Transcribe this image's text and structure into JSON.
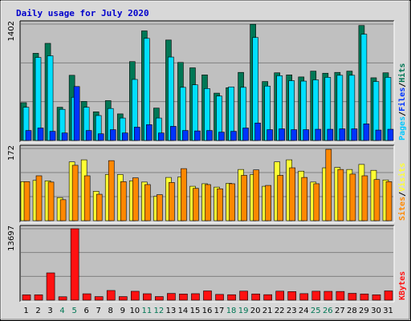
{
  "chart_data": {
    "type": "bar",
    "title": "Daily usage for July 2020",
    "days": [
      "1",
      "2",
      "3",
      "4",
      "5",
      "6",
      "7",
      "8",
      "9",
      "10",
      "11",
      "12",
      "13",
      "14",
      "15",
      "16",
      "17",
      "18",
      "19",
      "20",
      "21",
      "22",
      "23",
      "24",
      "25",
      "26",
      "27",
      "28",
      "29",
      "30",
      "31"
    ],
    "weekend_days": [
      4,
      5,
      11,
      12,
      18,
      19,
      25,
      26
    ],
    "colors": {
      "hits": "#007755",
      "files": "#00dfff",
      "pages": "#0033ff",
      "visits": "#ffff33",
      "sites": "#ff8800",
      "kbytes": "#ff1111",
      "weekday_text": "#000000",
      "weekend_text": "#007755",
      "title_text": "#0000cc",
      "plot_bg": "#c0c0c0",
      "frame_bg": "#d8d8d8"
    },
    "panels": [
      {
        "id": "hits",
        "ymax_label": "1402",
        "ymax": 1402,
        "grid_lines": 3,
        "legend": [
          {
            "text": "Pages",
            "color": "#00c8ff"
          },
          {
            "text": "/",
            "color": "#000000"
          },
          {
            "text": "Files",
            "color": "#0033ff"
          },
          {
            "text": "/",
            "color": "#000000"
          },
          {
            "text": "Hits",
            "color": "#007755"
          }
        ],
        "series": [
          {
            "name": "Hits",
            "color": "#007755",
            "values": [
              455,
              1050,
              1170,
              400,
              785,
              470,
              345,
              480,
              320,
              950,
              1320,
              390,
              1210,
              940,
              875,
              790,
              570,
              635,
              820,
              1400,
              710,
              815,
              790,
              765,
              835,
              810,
              820,
              835,
              1385,
              755,
              815
            ]
          },
          {
            "name": "Files",
            "color": "#00dfff",
            "values": [
              400,
              1000,
              1020,
              375,
              520,
              400,
              300,
              385,
              270,
              735,
              1230,
              270,
              1005,
              640,
              670,
              625,
              535,
              645,
              640,
              1240,
              655,
              780,
              720,
              715,
              730,
              760,
              785,
              785,
              1280,
              710,
              760
            ]
          },
          {
            "name": "Pages",
            "color": "#0033ff",
            "values": [
              120,
              150,
              110,
              90,
              650,
              120,
              80,
              130,
              90,
              160,
              190,
              90,
              170,
              120,
              115,
              120,
              100,
              110,
              150,
              210,
              130,
              140,
              130,
              130,
              135,
              135,
              140,
              140,
              200,
              125,
              135
            ]
          }
        ]
      },
      {
        "id": "visits",
        "ymax_label": "172",
        "ymax": 172,
        "grid_lines": 3,
        "legend": [
          {
            "text": "Sites",
            "color": "#ff8800"
          },
          {
            "text": "/",
            "color": "#000000"
          },
          {
            "text": "Visits",
            "color": "#ffff33"
          }
        ],
        "series": [
          {
            "name": "Visits",
            "color": "#ffff33",
            "values": [
              93,
              96,
              95,
              55,
              140,
              145,
              70,
              110,
              110,
              95,
              92,
              58,
              103,
              104,
              82,
              88,
              80,
              89,
              122,
              110,
              82,
              140,
              145,
              118,
              92,
              126,
              127,
              122,
              134,
              120,
              97
            ]
          },
          {
            "name": "Sites",
            "color": "#ff8800",
            "values": [
              93,
              107,
              92,
              50,
              132,
              107,
              63,
              143,
              93,
              102,
              86,
              62,
              91,
              124,
              77,
              86,
              76,
              88,
              108,
              121,
              84,
              108,
              126,
              103,
              88,
              170,
              122,
              111,
              107,
              98,
              93
            ]
          }
        ]
      },
      {
        "id": "kbytes",
        "ymax_label": "13697",
        "ymax": 13697,
        "grid_lines": 3,
        "legend": [
          {
            "text": "KBytes",
            "color": "#ff1111"
          }
        ],
        "series": [
          {
            "name": "KBytes",
            "color": "#ff1111",
            "values": [
              1020,
              1020,
              5230,
              650,
              13697,
              1220,
              680,
              1850,
              680,
              1700,
              1230,
              690,
              1290,
              1180,
              1240,
              1770,
              1100,
              1040,
              1730,
              1190,
              1050,
              1720,
              1640,
              1250,
              1710,
              1690,
              1670,
              1310,
              1190,
              1030,
              1770
            ]
          }
        ]
      }
    ]
  }
}
